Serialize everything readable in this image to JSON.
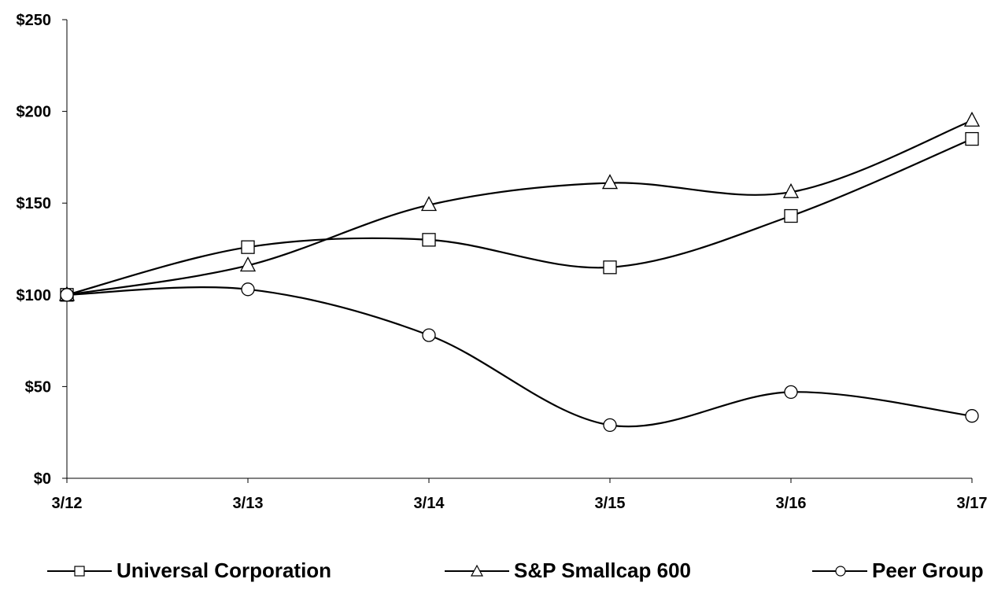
{
  "chart_data": {
    "type": "line",
    "title": "",
    "xlabel": "",
    "ylabel": "",
    "categories": [
      "3/12",
      "3/13",
      "3/14",
      "3/15",
      "3/16",
      "3/17"
    ],
    "y_ticks": [
      "$0",
      "$50",
      "$100",
      "$150",
      "$200",
      "$250"
    ],
    "ylim": [
      0,
      250
    ],
    "grid": false,
    "legend_position": "bottom",
    "series": [
      {
        "name": "Universal Corporation",
        "marker": "square",
        "values": [
          100,
          126,
          130,
          115,
          143,
          185
        ]
      },
      {
        "name": "S&P Smallcap 600",
        "marker": "triangle",
        "values": [
          100,
          116,
          149,
          161,
          156,
          195
        ]
      },
      {
        "name": "Peer Group",
        "marker": "circle",
        "values": [
          100,
          103,
          78,
          29,
          47,
          34
        ]
      }
    ],
    "colors": {
      "line": "#000000",
      "marker_fill": "#ffffff"
    }
  }
}
